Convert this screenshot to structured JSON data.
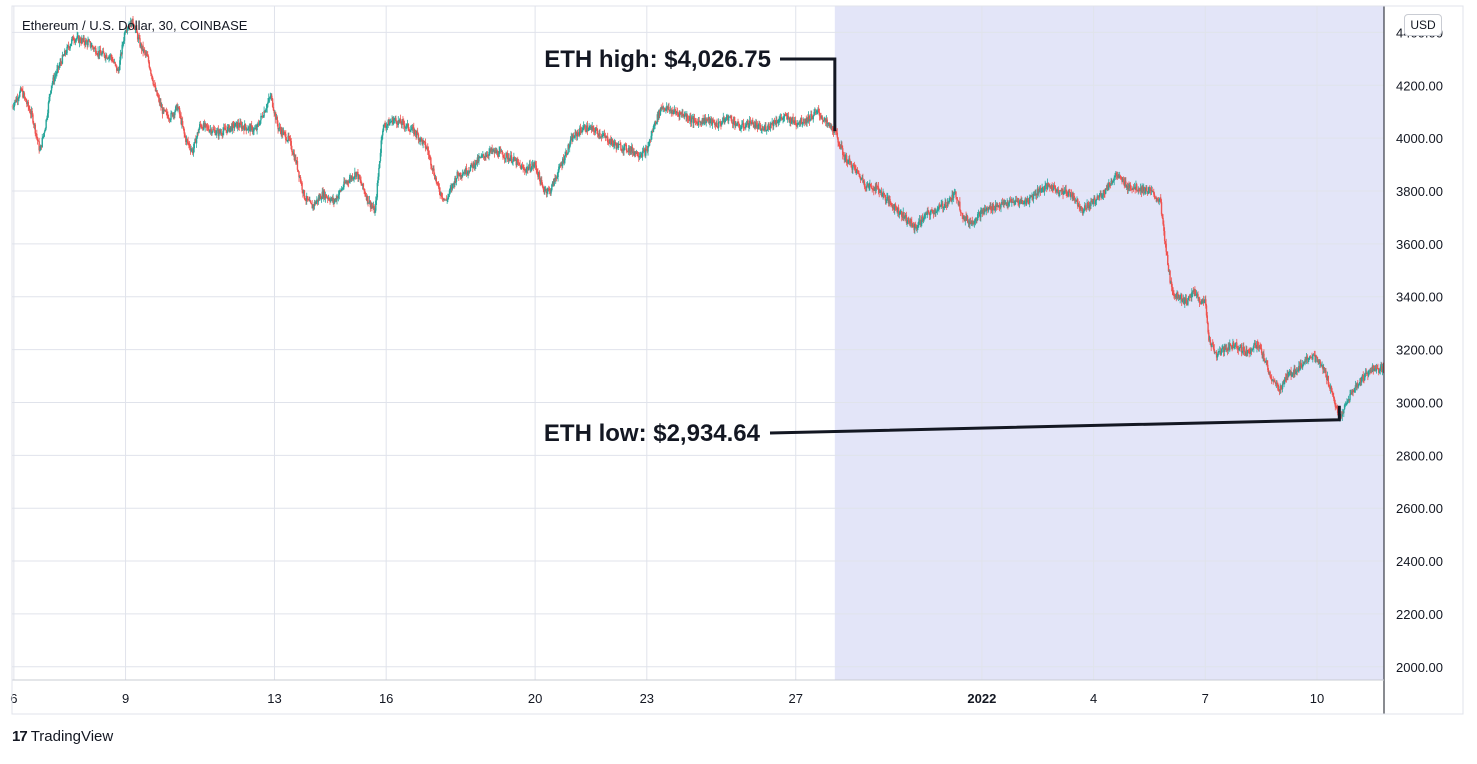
{
  "header": {
    "symbol_label": "Ethereum / U.S. Dollar, 30, COINBASE"
  },
  "currency_button": "USD",
  "brand": {
    "logo": "17",
    "name": "TradingView"
  },
  "chart_data": {
    "type": "candlestick",
    "title": "Ethereum / U.S. Dollar, 30, COINBASE",
    "ylim": [
      1950,
      4500
    ],
    "y_ticks": [
      "2000.00",
      "2200.00",
      "2400.00",
      "2600.00",
      "2800.00",
      "3000.00",
      "3200.00",
      "3400.00",
      "3600.00",
      "3800.00",
      "4000.00",
      "4200.00",
      "4400.00"
    ],
    "x_ticks": [
      {
        "label": "6",
        "day": 6
      },
      {
        "label": "9",
        "day": 9
      },
      {
        "label": "13",
        "day": 13
      },
      {
        "label": "16",
        "day": 16
      },
      {
        "label": "20",
        "day": 20
      },
      {
        "label": "23",
        "day": 23
      },
      {
        "label": "27",
        "day": 27
      },
      {
        "label": "2022",
        "day": 32
      },
      {
        "label": "4",
        "day": 35
      },
      {
        "label": "7",
        "day": 38
      },
      {
        "label": "10",
        "day": 41
      }
    ],
    "x_range": [
      5.95,
      42.8
    ],
    "highlight_range": [
      28.05,
      42.8
    ],
    "grid": true,
    "price_path": [
      [
        5.95,
        4120
      ],
      [
        6.2,
        4180
      ],
      [
        6.5,
        4080
      ],
      [
        6.7,
        3950
      ],
      [
        6.85,
        4050
      ],
      [
        7.0,
        4200
      ],
      [
        7.3,
        4300
      ],
      [
        7.6,
        4380
      ],
      [
        8.0,
        4360
      ],
      [
        8.3,
        4320
      ],
      [
        8.6,
        4310
      ],
      [
        8.8,
        4250
      ],
      [
        9.0,
        4420
      ],
      [
        9.2,
        4440
      ],
      [
        9.4,
        4350
      ],
      [
        9.6,
        4300
      ],
      [
        9.8,
        4180
      ],
      [
        10.0,
        4100
      ],
      [
        10.2,
        4080
      ],
      [
        10.4,
        4120
      ],
      [
        10.6,
        4000
      ],
      [
        10.8,
        3950
      ],
      [
        11.0,
        4050
      ],
      [
        11.5,
        4020
      ],
      [
        12.0,
        4050
      ],
      [
        12.5,
        4030
      ],
      [
        12.9,
        4160
      ],
      [
        13.1,
        4040
      ],
      [
        13.4,
        3990
      ],
      [
        13.6,
        3900
      ],
      [
        13.8,
        3780
      ],
      [
        14.0,
        3740
      ],
      [
        14.3,
        3790
      ],
      [
        14.6,
        3760
      ],
      [
        14.9,
        3830
      ],
      [
        15.2,
        3870
      ],
      [
        15.5,
        3770
      ],
      [
        15.7,
        3720
      ],
      [
        15.9,
        4040
      ],
      [
        16.2,
        4070
      ],
      [
        16.5,
        4050
      ],
      [
        16.8,
        4020
      ],
      [
        17.1,
        3960
      ],
      [
        17.4,
        3810
      ],
      [
        17.6,
        3760
      ],
      [
        17.9,
        3860
      ],
      [
        18.2,
        3880
      ],
      [
        18.5,
        3920
      ],
      [
        18.8,
        3950
      ],
      [
        19.1,
        3940
      ],
      [
        19.4,
        3920
      ],
      [
        19.7,
        3880
      ],
      [
        20.0,
        3900
      ],
      [
        20.2,
        3810
      ],
      [
        20.4,
        3800
      ],
      [
        20.7,
        3900
      ],
      [
        21.0,
        4000
      ],
      [
        21.3,
        4040
      ],
      [
        21.6,
        4030
      ],
      [
        21.9,
        4000
      ],
      [
        22.2,
        3970
      ],
      [
        22.5,
        3960
      ],
      [
        22.8,
        3940
      ],
      [
        23.0,
        3950
      ],
      [
        23.2,
        4050
      ],
      [
        23.4,
        4120
      ],
      [
        23.7,
        4100
      ],
      [
        24.0,
        4090
      ],
      [
        24.3,
        4060
      ],
      [
        24.6,
        4070
      ],
      [
        24.9,
        4050
      ],
      [
        25.2,
        4080
      ],
      [
        25.5,
        4040
      ],
      [
        25.8,
        4060
      ],
      [
        26.1,
        4030
      ],
      [
        26.4,
        4060
      ],
      [
        26.7,
        4080
      ],
      [
        27.0,
        4060
      ],
      [
        27.3,
        4070
      ],
      [
        27.6,
        4100
      ],
      [
        27.8,
        4060
      ],
      [
        28.05,
        4026.75
      ],
      [
        28.3,
        3930
      ],
      [
        28.6,
        3880
      ],
      [
        28.9,
        3820
      ],
      [
        29.2,
        3810
      ],
      [
        29.5,
        3760
      ],
      [
        29.8,
        3720
      ],
      [
        30.0,
        3690
      ],
      [
        30.2,
        3660
      ],
      [
        30.5,
        3710
      ],
      [
        30.8,
        3730
      ],
      [
        31.1,
        3760
      ],
      [
        31.3,
        3790
      ],
      [
        31.5,
        3700
      ],
      [
        31.7,
        3680
      ],
      [
        32.0,
        3720
      ],
      [
        32.3,
        3740
      ],
      [
        32.6,
        3750
      ],
      [
        32.9,
        3760
      ],
      [
        33.2,
        3760
      ],
      [
        33.5,
        3800
      ],
      [
        33.8,
        3820
      ],
      [
        34.1,
        3800
      ],
      [
        34.4,
        3790
      ],
      [
        34.7,
        3730
      ],
      [
        35.0,
        3760
      ],
      [
        35.3,
        3800
      ],
      [
        35.6,
        3860
      ],
      [
        35.9,
        3820
      ],
      [
        36.2,
        3810
      ],
      [
        36.5,
        3800
      ],
      [
        36.8,
        3760
      ],
      [
        36.9,
        3620
      ],
      [
        37.1,
        3420
      ],
      [
        37.3,
        3400
      ],
      [
        37.5,
        3380
      ],
      [
        37.7,
        3420
      ],
      [
        37.9,
        3380
      ],
      [
        38.0,
        3380
      ],
      [
        38.1,
        3240
      ],
      [
        38.3,
        3180
      ],
      [
        38.5,
        3200
      ],
      [
        38.8,
        3220
      ],
      [
        39.1,
        3190
      ],
      [
        39.4,
        3220
      ],
      [
        39.6,
        3160
      ],
      [
        39.8,
        3080
      ],
      [
        40.0,
        3050
      ],
      [
        40.2,
        3100
      ],
      [
        40.5,
        3130
      ],
      [
        40.8,
        3180
      ],
      [
        41.0,
        3160
      ],
      [
        41.2,
        3120
      ],
      [
        41.4,
        3040
      ],
      [
        41.6,
        2934.64
      ],
      [
        41.9,
        3030
      ],
      [
        42.2,
        3090
      ],
      [
        42.5,
        3130
      ],
      [
        42.8,
        3120
      ]
    ],
    "annotations": [
      {
        "name": "eth-high",
        "label": "ETH high: $4,026.75",
        "day": 28.05,
        "value": 4026.75
      },
      {
        "name": "eth-low",
        "label": "ETH low: $2,934.64",
        "day": 41.6,
        "value": 2934.64
      }
    ],
    "colors": {
      "up": "#26a69a",
      "down": "#ef5350",
      "highlight": "#e3e5f8",
      "grid": "#e0e3eb",
      "annotation": "#131722"
    }
  }
}
